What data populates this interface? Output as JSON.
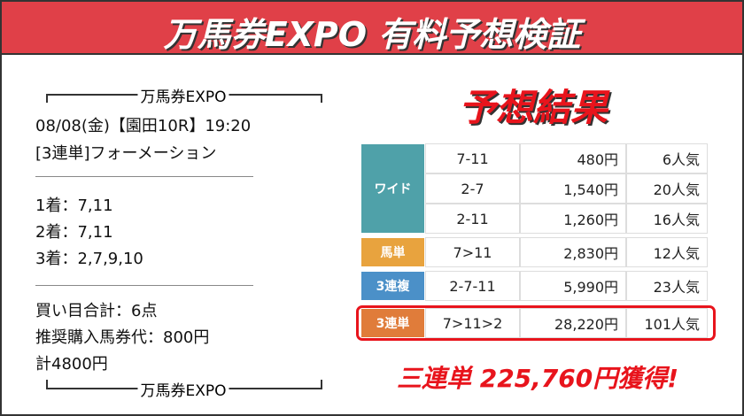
{
  "header": {
    "title": "万馬券EXPO 有料予想検証"
  },
  "ticket": {
    "brand_top": "万馬券EXPO",
    "race": "08/08(金)【園田10R】19:20",
    "bet_type": "[3連単]フォーメーション",
    "picks": [
      "1着：7,11",
      "2着：7,11",
      "3着：2,7,9,10"
    ],
    "summary": [
      "買い目合計：6点",
      "推奨購入馬券代：800円",
      "計4800円"
    ],
    "brand_bottom": "万馬券EXPO"
  },
  "results": {
    "title": "予想結果",
    "groups": [
      {
        "label": "ワイド",
        "rows": [
          {
            "combination": "7-11",
            "payout": "480円",
            "popularity": "6人気"
          },
          {
            "combination": "2-7",
            "payout": "1,540円",
            "popularity": "20人気"
          },
          {
            "combination": "2-11",
            "payout": "1,260円",
            "popularity": "16人気"
          }
        ]
      },
      {
        "label": "馬単",
        "rows": [
          {
            "combination": "7>11",
            "payout": "2,830円",
            "popularity": "12人気"
          }
        ]
      },
      {
        "label": "3連複",
        "rows": [
          {
            "combination": "2-7-11",
            "payout": "5,990円",
            "popularity": "23人気"
          }
        ]
      },
      {
        "label": "3連単",
        "rows": [
          {
            "combination": "7>11>2",
            "payout": "28,220円",
            "popularity": "101人気"
          }
        ]
      }
    ],
    "total": "三連単 225,760円獲得!"
  }
}
